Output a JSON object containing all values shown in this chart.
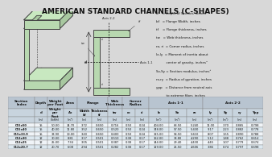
{
  "title": "AMERICAN STANDARD CHANNELS (C-SHAPES)",
  "bg_color": "#d8d8d8",
  "table_header_bg1": "#b8c4d0",
  "table_header_bg2": "#c8d4de",
  "table_unit_bg": "#d0dae4",
  "row_colors": [
    "#f0f4f8",
    "#dce8f0"
  ],
  "legend_lines": [
    "d    = Depth of Section, inches",
    "bf   = Flange Width, inches",
    "tf    = Flange thickness, inches",
    "tw   = Web thickness, inches",
    "ro, ri  = Corner radius, inches",
    "Ix,Iy  = Moment of inertia about",
    "          center of gravity, inches⁴",
    "Sx,Sy = Section modulus, inches³",
    "rx,ry  = Radius of gyration, inches",
    "ypp   = Distance from neutral axis",
    "          to extreme fiber, inches"
  ],
  "col_groups": [
    {
      "label": "Section\nIndex",
      "span": 1,
      "col": 0
    },
    {
      "label": "Depth",
      "span": 1,
      "col": 1
    },
    {
      "label": "Weight\nper\nFoot",
      "span": 1,
      "col": 2
    },
    {
      "label": "Area",
      "span": 1,
      "col": 3
    },
    {
      "label": "Flange",
      "span": 2,
      "col": 4
    },
    {
      "label": "Web\nThickness",
      "span": 1,
      "col": 6
    },
    {
      "label": "Corner\nRadius",
      "span": 2,
      "col": 7
    },
    {
      "label": "Axis 1-1",
      "span": 3,
      "col": 9
    },
    {
      "label": "Axis 2-2",
      "span": 4,
      "col": 12
    }
  ],
  "sub_headers": [
    "",
    "d",
    "Weight\nper\nFoot",
    "Ax",
    "Width\nbf",
    "Thickness\ntf",
    "tw",
    "ro",
    "ri",
    "Ix",
    "Sx",
    "rx",
    "Iy",
    "Sy",
    "ry",
    "Ypp"
  ],
  "units": [
    "",
    "(in)",
    "(lbf/ft)",
    "(in²)",
    "(in)",
    "(in)",
    "(in)",
    "(in)",
    "(in)",
    "(in⁴)",
    "(in³)",
    "(in)",
    "(in⁴)",
    "(in³)",
    "(in)",
    "(in)"
  ],
  "rows": [
    [
      "C15x50",
      "15",
      "50.00",
      "14.70",
      "3.72",
      "0.650",
      "0.716",
      "0.50",
      "0.24",
      "404.00",
      "68.50",
      "5.240",
      "11.00",
      "3.70",
      "0.865",
      "0.798"
    ],
    [
      "C15x40",
      "15",
      "40.00",
      "11.80",
      "3.52",
      "0.650",
      "0.520",
      "0.50",
      "0.24",
      "348.00",
      "57.50",
      "5.430",
      "9.17",
      "2.23",
      "0.882",
      "0.778"
    ],
    [
      "C15x33.9",
      "15",
      "33.90",
      "10.00",
      "3.40",
      "0.650",
      "0.400",
      "0.50",
      "0.24",
      "315.00",
      "54.50",
      "5.610",
      "8.07",
      "1.55",
      "0.890",
      "0.788"
    ],
    [
      "C12x30",
      "12",
      "30.00",
      "8.81",
      "3.17",
      "0.501",
      "0.510",
      "0.38",
      "0.17",
      "162.00",
      "33.80",
      "4.290",
      "5.12",
      "1.88",
      "0.762",
      "0.614"
    ],
    [
      "C12x25",
      "12",
      "25.00",
      "7.34",
      "3.05",
      "0.501",
      "0.387",
      "0.38",
      "0.17",
      "144.00",
      "29.40",
      "4.430",
      "4.45",
      "1.07",
      "0.779",
      "0.674"
    ],
    [
      "C12x20.7",
      "12",
      "20.70",
      "6.08",
      "2.94",
      "0.501",
      "0.282",
      "0.38",
      "0.17",
      "129.00",
      "25.50",
      "4.606",
      "3.86",
      "0.74",
      "0.797",
      "0.698"
    ]
  ],
  "n_cols": 16
}
